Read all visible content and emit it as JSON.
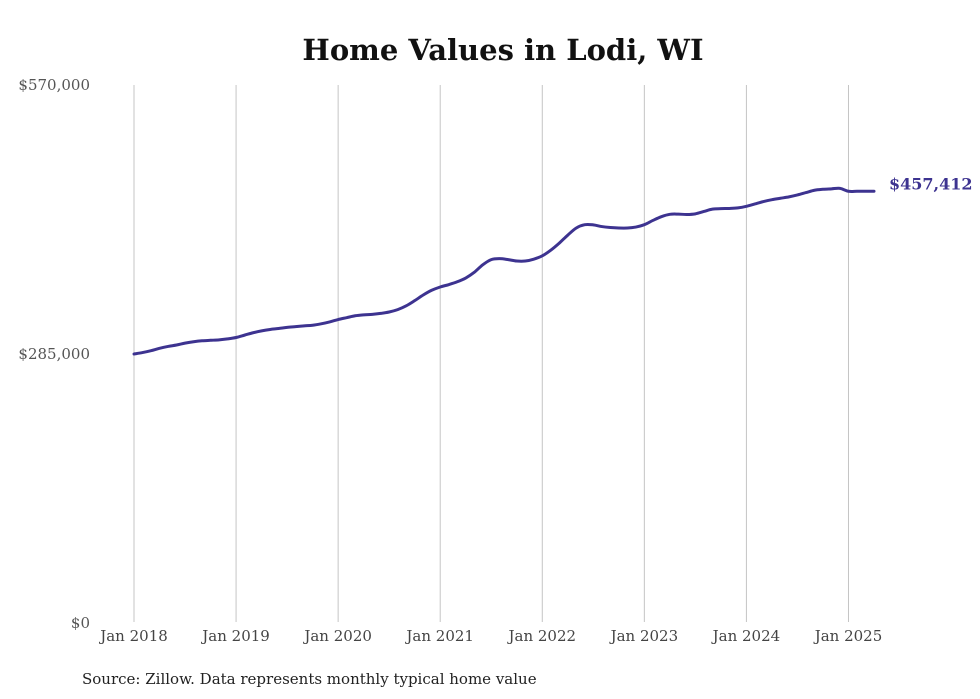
{
  "chart_data": {
    "type": "line",
    "title": "Home Values in Lodi, WI",
    "source": "Source: Zillow. Data represents monthly typical home value",
    "y_ticks": [
      {
        "value": 570000,
        "label": "$570,000"
      },
      {
        "value": 285000,
        "label": "$285,000"
      },
      {
        "value": 0,
        "label": "$0"
      }
    ],
    "x_ticks": [
      {
        "value": "2018-01",
        "label": "Jan 2018"
      },
      {
        "value": "2019-01",
        "label": "Jan 2019"
      },
      {
        "value": "2020-01",
        "label": "Jan 2020"
      },
      {
        "value": "2021-01",
        "label": "Jan 2021"
      },
      {
        "value": "2022-01",
        "label": "Jan 2022"
      },
      {
        "value": "2023-01",
        "label": "Jan 2023"
      },
      {
        "value": "2024-01",
        "label": "Jan 2024"
      },
      {
        "value": "2025-01",
        "label": "Jan 2025"
      }
    ],
    "ylim": [
      0,
      570000
    ],
    "xlim": [
      "2018-01",
      "2025-04"
    ],
    "grid": "vertical",
    "line_color": "#3d3390",
    "end_label": "$457,412",
    "series": [
      {
        "x": [
          "2018-01",
          "2018-02",
          "2018-03",
          "2018-04",
          "2018-05",
          "2018-06",
          "2018-07",
          "2018-08",
          "2018-09",
          "2018-10",
          "2018-11",
          "2018-12",
          "2019-01",
          "2019-02",
          "2019-03",
          "2019-04",
          "2019-05",
          "2019-06",
          "2019-07",
          "2019-08",
          "2019-09",
          "2019-10",
          "2019-11",
          "2019-12",
          "2020-01",
          "2020-02",
          "2020-03",
          "2020-04",
          "2020-05",
          "2020-06",
          "2020-07",
          "2020-08",
          "2020-09",
          "2020-10",
          "2020-11",
          "2020-12",
          "2021-01",
          "2021-02",
          "2021-03",
          "2021-04",
          "2021-05",
          "2021-06",
          "2021-07",
          "2021-08",
          "2021-09",
          "2021-10",
          "2021-11",
          "2021-12",
          "2022-01",
          "2022-02",
          "2022-03",
          "2022-04",
          "2022-05",
          "2022-06",
          "2022-07",
          "2022-08",
          "2022-09",
          "2022-10",
          "2022-11",
          "2022-12",
          "2023-01",
          "2023-02",
          "2023-03",
          "2023-04",
          "2023-05",
          "2023-06",
          "2023-07",
          "2023-08",
          "2023-09",
          "2023-10",
          "2023-11",
          "2023-12",
          "2024-01",
          "2024-02",
          "2024-03",
          "2024-04",
          "2024-05",
          "2024-06",
          "2024-07",
          "2024-08",
          "2024-09",
          "2024-10",
          "2024-11",
          "2024-12",
          "2025-01",
          "2025-02",
          "2025-03",
          "2025-04"
        ],
        "values": [
          285000,
          286500,
          288500,
          291000,
          293000,
          294500,
          296500,
          298000,
          299000,
          299500,
          300000,
          301000,
          302500,
          305000,
          307500,
          309500,
          311000,
          312000,
          313200,
          314000,
          314800,
          315500,
          317000,
          319000,
          321500,
          323500,
          325500,
          326500,
          327000,
          328000,
          329500,
          332000,
          336000,
          341500,
          347500,
          352500,
          356000,
          358500,
          361500,
          365500,
          371500,
          379500,
          385000,
          386000,
          385000,
          383500,
          383500,
          385500,
          389000,
          395000,
          402500,
          411000,
          418500,
          422000,
          421800,
          420000,
          419000,
          418500,
          418500,
          419500,
          422000,
          426500,
          430500,
          433000,
          433200,
          432800,
          433500,
          436000,
          438500,
          439000,
          439200,
          439800,
          441500,
          444000,
          446500,
          448500,
          450000,
          451500,
          453500,
          456000,
          458500,
          459500,
          460000,
          460500,
          457412,
          457412,
          457412,
          457412
        ]
      }
    ]
  }
}
